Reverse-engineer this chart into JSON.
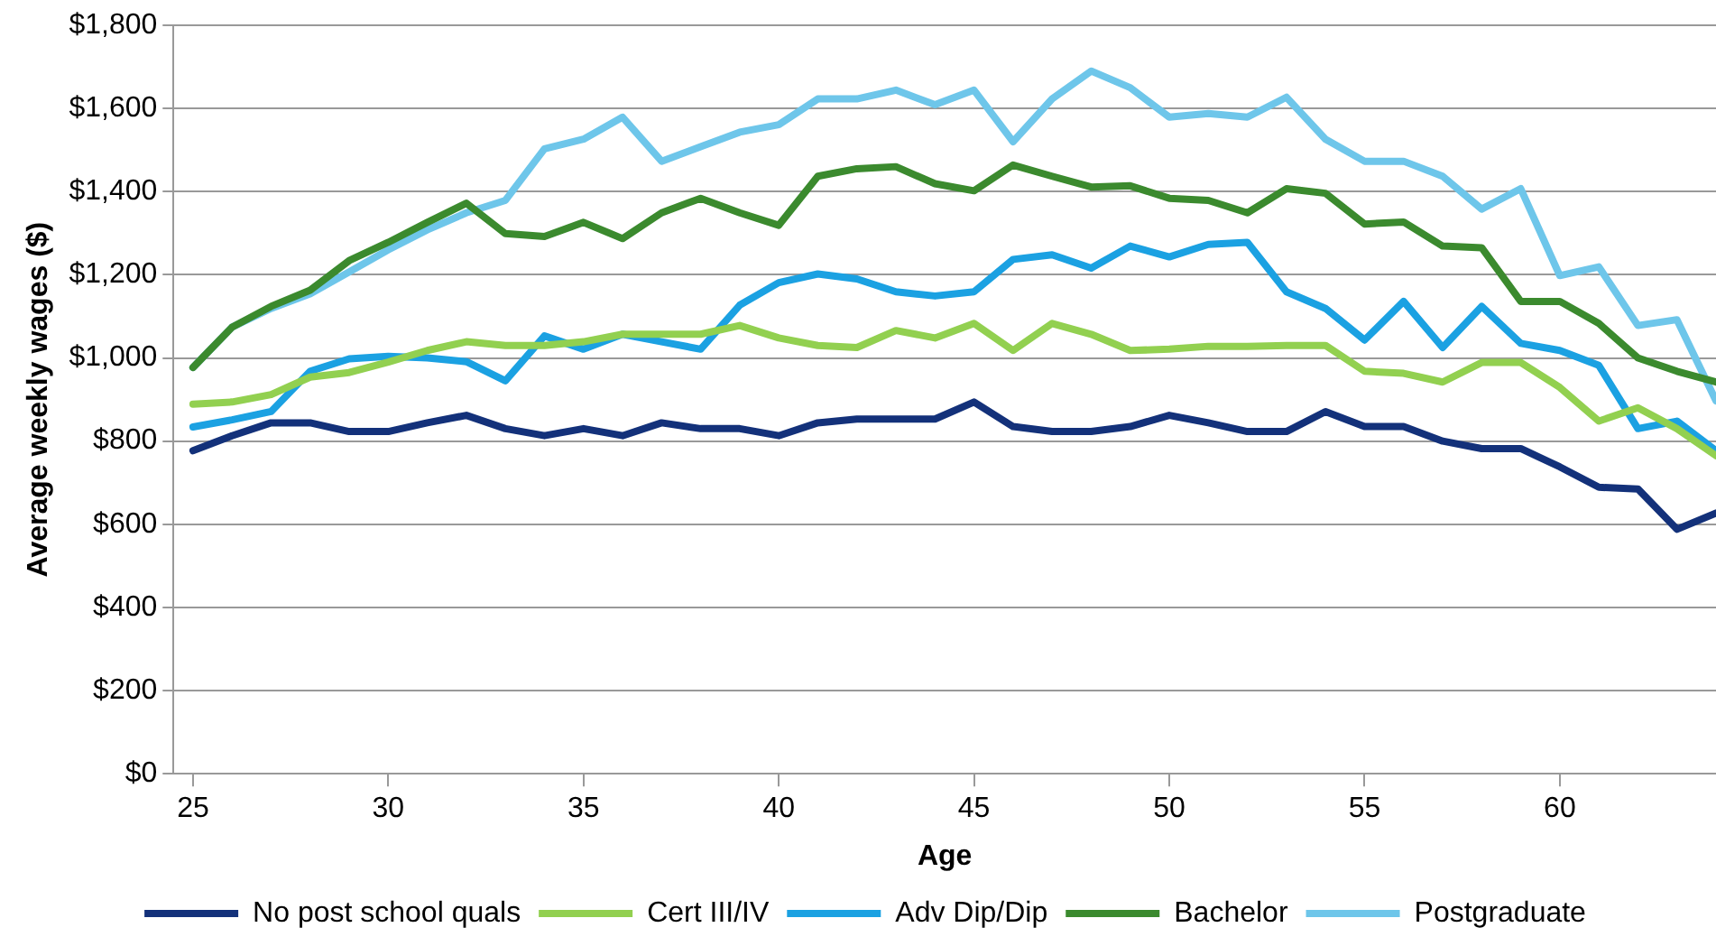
{
  "chart_data": {
    "type": "line",
    "xlabel": "Age",
    "ylabel": "Average weekly wages ($)",
    "x": [
      25,
      26,
      27,
      28,
      29,
      30,
      31,
      32,
      33,
      34,
      35,
      36,
      37,
      38,
      39,
      40,
      41,
      42,
      43,
      44,
      45,
      46,
      47,
      48,
      49,
      50,
      51,
      52,
      53,
      54,
      55,
      56,
      57,
      58,
      59,
      60,
      61,
      62,
      63,
      64
    ],
    "xlim": [
      24.5,
      64
    ],
    "xticks": [
      25,
      30,
      35,
      40,
      45,
      50,
      55,
      60
    ],
    "ylim": [
      0,
      1800
    ],
    "yticks": [
      {
        "value": 0,
        "label": "$0"
      },
      {
        "value": 200,
        "label": "$200"
      },
      {
        "value": 400,
        "label": "$400"
      },
      {
        "value": 600,
        "label": "$600"
      },
      {
        "value": 800,
        "label": "$800"
      },
      {
        "value": 1000,
        "label": "$1,000"
      },
      {
        "value": 1200,
        "label": "$1,200"
      },
      {
        "value": 1400,
        "label": "$1,400"
      },
      {
        "value": 1600,
        "label": "$1,600"
      },
      {
        "value": 1800,
        "label": "$1,800"
      }
    ],
    "grid": "y",
    "legend": "bottom",
    "marker": "none",
    "line_style": "solid",
    "series": [
      {
        "name": "No post school quals",
        "color": "#13317a",
        "values": [
          777,
          813,
          844,
          844,
          823,
          823,
          844,
          862,
          830,
          813,
          830,
          813,
          844,
          830,
          830,
          813,
          844,
          853,
          853,
          853,
          894,
          835,
          823,
          823,
          835,
          862,
          844,
          823,
          823,
          871,
          835,
          835,
          800,
          782,
          782,
          738,
          689,
          685,
          588,
          627
        ]
      },
      {
        "name": "Cert III/IV",
        "color": "#92d050",
        "values": [
          889,
          894,
          912,
          954,
          965,
          990,
          1018,
          1039,
          1030,
          1030,
          1039,
          1057,
          1057,
          1057,
          1078,
          1048,
          1030,
          1025,
          1066,
          1048,
          1083,
          1018,
          1083,
          1057,
          1018,
          1021,
          1028,
          1028,
          1030,
          1030,
          968,
          963,
          942,
          989,
          989,
          929,
          848,
          880,
          830,
          765
        ]
      },
      {
        "name": "Adv Dip/Dip",
        "color": "#1ba1e2",
        "values": [
          834,
          851,
          871,
          968,
          998,
          1004,
          1000,
          991,
          945,
          1053,
          1021,
          1057,
          1039,
          1021,
          1127,
          1181,
          1202,
          1190,
          1159,
          1149,
          1159,
          1237,
          1248,
          1216,
          1269,
          1243,
          1273,
          1278,
          1159,
          1119,
          1043,
          1136,
          1025,
          1124,
          1035,
          1018,
          982,
          830,
          848,
          777
        ]
      },
      {
        "name": "Bachelor",
        "color": "#3b8a2e",
        "values": [
          977,
          1074,
          1124,
          1163,
          1234,
          1278,
          1326,
          1372,
          1299,
          1292,
          1326,
          1287,
          1349,
          1384,
          1349,
          1319,
          1437,
          1455,
          1460,
          1419,
          1402,
          1464,
          1437,
          1411,
          1414,
          1384,
          1379,
          1349,
          1407,
          1396,
          1322,
          1327,
          1269,
          1265,
          1136,
          1136,
          1083,
          1000,
          968,
          942
        ]
      },
      {
        "name": "Postgraduate",
        "color": "#6ec6ea",
        "values": [
          977,
          1074,
          1119,
          1154,
          1207,
          1260,
          1308,
          1349,
          1379,
          1503,
          1526,
          1579,
          1473,
          1508,
          1543,
          1561,
          1623,
          1623,
          1644,
          1609,
          1644,
          1520,
          1623,
          1690,
          1650,
          1579,
          1588,
          1579,
          1627,
          1526,
          1473,
          1473,
          1437,
          1358,
          1407,
          1198,
          1219,
          1078,
          1092,
          897
        ]
      }
    ]
  }
}
